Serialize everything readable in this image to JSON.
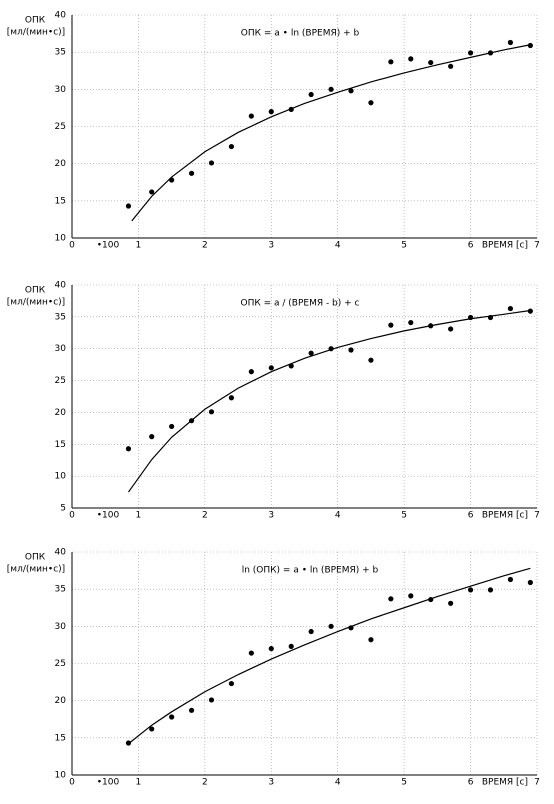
{
  "chart_data": [
    {
      "type": "scatter",
      "y_label_1": "ОПК",
      "y_label_2": "[мл/(мин•с)]",
      "x_label": "ВРЕМЯ [с]",
      "x_multiplier": "•100",
      "annotation": "ОПК = a • ln (ВРЕМЯ) + b",
      "color": "#000000",
      "grid": true,
      "xlim": [
        0,
        7
      ],
      "xticks": [
        0,
        1,
        2,
        3,
        4,
        5,
        6,
        7
      ],
      "ylim": [
        10,
        40
      ],
      "yticks": [
        10,
        15,
        20,
        25,
        30,
        35,
        40
      ],
      "points": {
        "x": [
          0.85,
          1.2,
          1.5,
          1.8,
          2.1,
          2.4,
          2.7,
          3.0,
          3.3,
          3.6,
          3.9,
          4.2,
          4.5,
          4.8,
          5.1,
          5.4,
          5.7,
          6.0,
          6.3,
          6.6,
          6.9
        ],
        "y": [
          14.3,
          16.2,
          17.8,
          18.7,
          20.1,
          22.3,
          26.4,
          27.0,
          27.3,
          29.3,
          30.0,
          29.8,
          28.2,
          33.7,
          34.1,
          33.6,
          33.1,
          34.9,
          34.9,
          36.3,
          35.9
        ]
      },
      "fit": {
        "x": [
          0.9,
          1.2,
          1.5,
          2,
          2.5,
          3,
          3.5,
          4,
          4.5,
          5,
          5.5,
          6,
          6.5,
          6.9
        ],
        "y": [
          12.3,
          15.6,
          18.2,
          21.6,
          24.2,
          26.3,
          28.1,
          29.6,
          31.0,
          32.2,
          33.3,
          34.3,
          35.3,
          36.0
        ]
      }
    },
    {
      "type": "scatter",
      "y_label_1": "ОПК",
      "y_label_2": "[мл/(мин•с)]",
      "x_label": "ВРЕМЯ [с]",
      "x_multiplier": "•100",
      "annotation": "ОПК = a / (ВРЕМЯ - b) + c",
      "color": "#000000",
      "grid": true,
      "xlim": [
        0,
        7
      ],
      "xticks": [
        0,
        1,
        2,
        3,
        4,
        5,
        6,
        7
      ],
      "ylim": [
        5,
        40
      ],
      "yticks": [
        5,
        10,
        15,
        20,
        25,
        30,
        35,
        40
      ],
      "points": {
        "x": [
          0.85,
          1.2,
          1.5,
          1.8,
          2.1,
          2.4,
          2.7,
          3.0,
          3.3,
          3.6,
          3.9,
          4.2,
          4.5,
          4.8,
          5.1,
          5.4,
          5.7,
          6.0,
          6.3,
          6.6,
          6.9
        ],
        "y": [
          14.3,
          16.2,
          17.8,
          18.7,
          20.1,
          22.3,
          26.4,
          27.0,
          27.3,
          29.3,
          30.0,
          29.8,
          28.2,
          33.7,
          34.1,
          33.6,
          33.1,
          34.9,
          34.9,
          36.3,
          35.9
        ]
      },
      "fit": {
        "x": [
          0.85,
          1.2,
          1.5,
          2,
          2.5,
          3,
          3.5,
          4,
          4.5,
          5,
          5.5,
          6,
          6.5,
          6.9
        ],
        "y": [
          7.5,
          12.6,
          16.1,
          20.5,
          23.8,
          26.4,
          28.5,
          30.2,
          31.6,
          32.8,
          33.8,
          34.7,
          35.4,
          36.0
        ]
      }
    },
    {
      "type": "scatter",
      "y_label_1": "ОПК",
      "y_label_2": "[мл/(мин•с)]",
      "x_label": "ВРЕМЯ [с]",
      "x_multiplier": "•100",
      "annotation": "ln (ОПК) = a • ln (ВРЕМЯ) + b",
      "color": "#000000",
      "grid": true,
      "xlim": [
        0,
        7
      ],
      "xticks": [
        0,
        1,
        2,
        3,
        4,
        5,
        6,
        7
      ],
      "ylim": [
        10,
        40
      ],
      "yticks": [
        10,
        15,
        20,
        25,
        30,
        35,
        40
      ],
      "points": {
        "x": [
          0.85,
          1.2,
          1.5,
          1.8,
          2.1,
          2.4,
          2.7,
          3.0,
          3.3,
          3.6,
          3.9,
          4.2,
          4.5,
          4.8,
          5.1,
          5.4,
          5.7,
          6.0,
          6.3,
          6.6,
          6.9
        ],
        "y": [
          14.3,
          16.2,
          17.8,
          18.7,
          20.1,
          22.3,
          26.4,
          27.0,
          27.3,
          29.3,
          30.0,
          29.8,
          28.2,
          33.7,
          34.1,
          33.6,
          33.1,
          34.9,
          34.9,
          36.3,
          35.9
        ]
      },
      "fit": {
        "x": [
          0.85,
          1.2,
          1.5,
          2,
          2.5,
          3,
          3.5,
          4,
          4.5,
          5,
          5.5,
          6,
          6.5,
          6.9
        ],
        "y": [
          14.2,
          16.7,
          18.5,
          21.2,
          23.5,
          25.6,
          27.5,
          29.3,
          31.0,
          32.5,
          34.0,
          35.4,
          36.8,
          37.8
        ]
      }
    }
  ]
}
